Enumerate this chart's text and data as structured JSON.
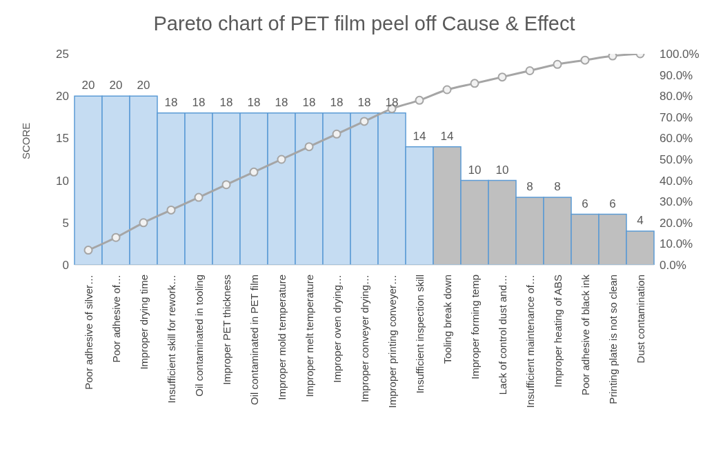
{
  "chart_data": {
    "type": "bar",
    "title": "Pareto chart of PET film peel off Cause & Effect",
    "ylabel": "SCORE",
    "categories": [
      "Poor adhesive of silver…",
      "Poor adhesive of…",
      "Improper drying time",
      "Insufficient skill for rework…",
      "Oil contaminated in tooling",
      "Improper PET thickness",
      "Oil contaminated in PET film",
      "Improper mold temperature",
      "Improper melt temperature",
      "Improper oven drying…",
      "Improper conveyer drying…",
      "Improper printing conveyer…",
      "Insufficient inspection skill",
      "Tooling break down",
      "Improper forming temp",
      "Lack of control dust and…",
      "Insufficient maintenance of…",
      "Improper heating of ABS",
      "Poor adhesive of black ink",
      "Printing plate is not so clean",
      "Dust contamination"
    ],
    "series": [
      {
        "value_labels": [
          "20",
          "20",
          "20",
          "18",
          "18",
          "18",
          "18",
          "18",
          "18",
          "18",
          "18",
          "18",
          "14",
          "14",
          "10",
          "10",
          "8",
          "8",
          "6",
          "6",
          "4"
        ],
        "colors": [
          "#c5dcf2",
          "#c5dcf2",
          "#c5dcf2",
          "#c5dcf2",
          "#c5dcf2",
          "#c5dcf2",
          "#c5dcf2",
          "#c5dcf2",
          "#c5dcf2",
          "#c5dcf2",
          "#c5dcf2",
          "#c5dcf2",
          "#c5dcf2",
          "#bfbfbf",
          "#bfbfbf",
          "#bfbfbf",
          "#bfbfbf",
          "#bfbfbf",
          "#bfbfbf",
          "#bfbfbf",
          "#bfbfbf"
        ],
        "values": [
          20,
          20,
          20,
          18,
          18,
          18,
          18,
          18,
          18,
          18,
          18,
          18,
          14,
          14,
          10,
          10,
          8,
          8,
          6,
          6,
          4
        ]
      },
      {
        "type": "line",
        "axis": "y2",
        "color": "#a5a5a5",
        "marker": "circle",
        "values": [
          7,
          13,
          20,
          26,
          32,
          38,
          44,
          50,
          56,
          62,
          68,
          74,
          78,
          83,
          86,
          89,
          92,
          95,
          97,
          99,
          100
        ]
      }
    ],
    "grid": false,
    "ylim": [
      0,
      25
    ],
    "yticks": [
      0,
      5,
      10,
      15,
      20,
      25
    ],
    "y2lim": [
      0,
      100
    ],
    "y2ticks": [
      {
        "value": 0,
        "label": "0.0%"
      },
      {
        "value": 10,
        "label": "10.0%"
      },
      {
        "value": 20,
        "label": "20.0%"
      },
      {
        "value": 30,
        "label": "30.0%"
      },
      {
        "value": 40,
        "label": "40.0%"
      },
      {
        "value": 50,
        "label": "50.0%"
      },
      {
        "value": 60,
        "label": "60.0%"
      },
      {
        "value": 70,
        "label": "70.0%"
      },
      {
        "value": 80,
        "label": "80.0%"
      },
      {
        "value": 90,
        "label": "90.0%"
      },
      {
        "value": 100,
        "label": "100.0%"
      }
    ]
  }
}
